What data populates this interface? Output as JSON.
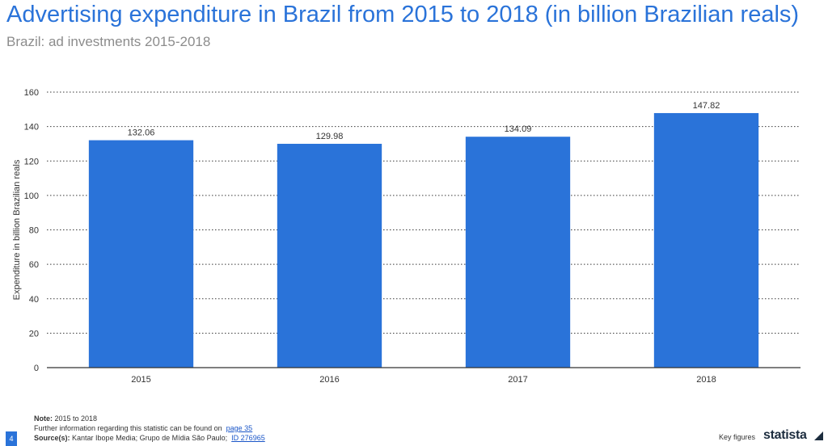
{
  "chart_data": {
    "type": "bar",
    "title": "Advertising expenditure in Brazil from 2015 to 2018 (in billion Brazilian reals)",
    "subtitle": "Brazil: ad investments 2015-2018",
    "categories": [
      "2015",
      "2016",
      "2017",
      "2018"
    ],
    "values": [
      132.06,
      129.98,
      134.09,
      147.82
    ],
    "value_labels": [
      "132.06",
      "129.98",
      "134.09",
      "147.82"
    ],
    "xlabel": "",
    "ylabel": "Expenditure in billion Brazilian reals",
    "ylim": [
      0,
      160
    ],
    "yticks": [
      0,
      20,
      40,
      60,
      80,
      100,
      120,
      140,
      160
    ],
    "grid": true,
    "bar_color": "#2a73d9"
  },
  "footer": {
    "note_label": "Note:",
    "note_text": "2015 to 2018",
    "further_info": "Further information regarding this statistic can be found on",
    "page_link": "page 35",
    "sources_label": "Source(s):",
    "sources_text": "Kantar Ibope Media; Grupo de Mídia São Paulo;",
    "id_link": "ID 276965"
  },
  "page_number": "4",
  "key_figures": "Key figures",
  "brand": "statista"
}
